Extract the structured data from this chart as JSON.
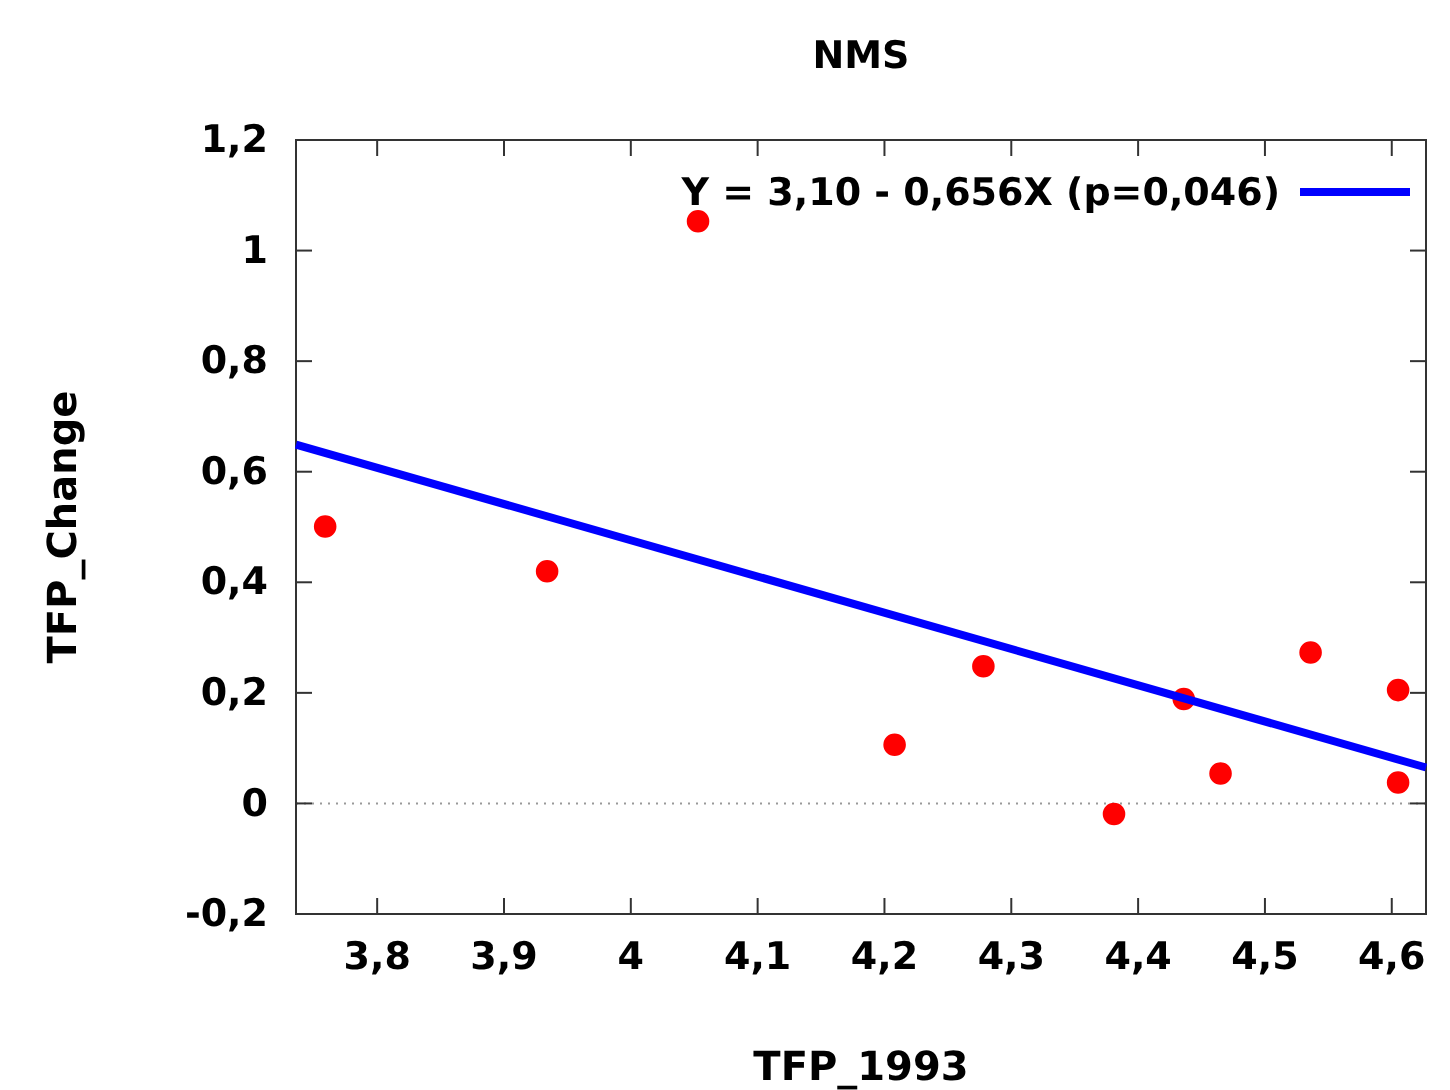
{
  "chart_data": {
    "type": "scatter",
    "title": "NMS",
    "xlabel": "TFP_1993",
    "ylabel": "TFP_Change",
    "xlim": [
      3.736,
      4.627
    ],
    "ylim": [
      -0.2,
      1.2
    ],
    "xticks": [
      {
        "value": 3.8,
        "label": "3,8"
      },
      {
        "value": 3.9,
        "label": "3,9"
      },
      4,
      {
        "value": 4.1,
        "label": "4,1"
      },
      {
        "value": 4.2,
        "label": "4,2"
      },
      {
        "value": 4.3,
        "label": "4,3"
      },
      {
        "value": 4.4,
        "label": "4,4"
      },
      {
        "value": 4.5,
        "label": "4,5"
      },
      {
        "value": 4.6,
        "label": "4,6"
      }
    ],
    "yticks": [
      {
        "value": -0.2,
        "label": "-0,2"
      },
      0,
      {
        "value": 0.2,
        "label": "0,2"
      },
      {
        "value": 0.4,
        "label": "0,4"
      },
      {
        "value": 0.6,
        "label": "0,6"
      },
      {
        "value": 0.8,
        "label": "0,8"
      },
      1,
      {
        "value": 1.2,
        "label": "1,2"
      }
    ],
    "legend": "top right",
    "ref_lines": [
      {
        "axis": "y",
        "value": 0,
        "color": "#999999",
        "line_style": "dotted"
      }
    ],
    "series": [
      {
        "marker": "circle",
        "color": "#ff0000",
        "x": [
          3.759,
          3.934,
          4.053,
          4.208,
          4.278,
          4.381,
          4.436,
          4.465,
          4.536,
          4.605,
          4.605
        ],
        "values": [
          0.501,
          0.42,
          1.053,
          0.106,
          0.248,
          -0.019,
          0.189,
          0.054,
          0.273,
          0.205,
          0.038
        ]
      },
      {
        "type": "line",
        "marker": "none",
        "name": "Y = 3,10 - 0,656X (p=0,046)",
        "color": "#0000ff",
        "x": [
          3.736,
          4.627
        ],
        "values": [
          0.649,
          0.065
        ]
      }
    ]
  }
}
